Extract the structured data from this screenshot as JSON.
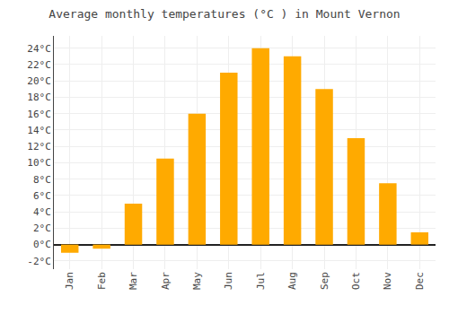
{
  "chart_data": {
    "type": "bar",
    "title": "Average monthly temperatures (°C ) in Mount Vernon",
    "categories": [
      "Jan",
      "Feb",
      "Mar",
      "Apr",
      "May",
      "Jun",
      "Jul",
      "Aug",
      "Sep",
      "Oct",
      "Nov",
      "Dec"
    ],
    "values": [
      -1.0,
      -0.5,
      5.0,
      10.5,
      16.0,
      21.0,
      24.0,
      23.0,
      19.0,
      13.0,
      7.5,
      1.5
    ],
    "color": "#FFAA00",
    "ylim": [
      -3.0,
      25.5
    ],
    "yticks": [
      {
        "value": -2,
        "label": "-2°C"
      },
      {
        "value": 0,
        "label": "0°C"
      },
      {
        "value": 2,
        "label": "2°C"
      },
      {
        "value": 4,
        "label": "4°C"
      },
      {
        "value": 6,
        "label": "6°C"
      },
      {
        "value": 8,
        "label": "8°C"
      },
      {
        "value": 10,
        "label": "10°C"
      },
      {
        "value": 12,
        "label": "12°C"
      },
      {
        "value": 14,
        "label": "14°C"
      },
      {
        "value": 16,
        "label": "16°C"
      },
      {
        "value": 18,
        "label": "18°C"
      },
      {
        "value": 20,
        "label": "20°C"
      },
      {
        "value": 22,
        "label": "22°C"
      },
      {
        "value": 24,
        "label": "24°C"
      }
    ],
    "grid": true
  }
}
